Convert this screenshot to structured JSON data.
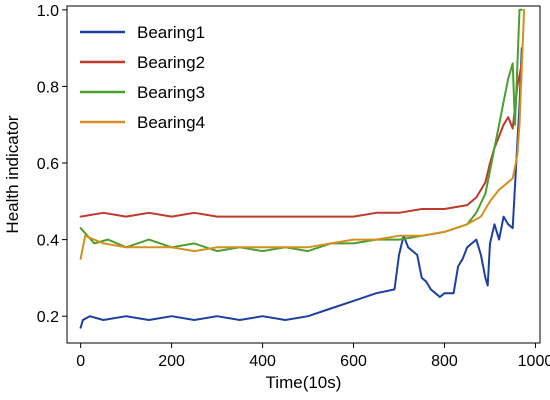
{
  "chart_data": {
    "type": "line",
    "title": "",
    "xlabel": "Time(10s)",
    "ylabel": "Health indicator",
    "xlim": [
      -30,
      1010
    ],
    "ylim": [
      0.13,
      1.01
    ],
    "xticks": [
      0,
      200,
      400,
      600,
      800,
      1000
    ],
    "xtick_labels": [
      "0",
      "200",
      "400",
      "600",
      "800",
      "1000"
    ],
    "yticks": [
      0.2,
      0.4,
      0.6,
      0.8,
      1.0
    ],
    "ytick_labels": [
      "0.2",
      "0.4",
      "0.6",
      "0.8",
      "1.0"
    ],
    "grid": false,
    "legend_position": "top-left",
    "series": [
      {
        "name": "Bearing1",
        "color": "#1f3fa0",
        "x": [
          0,
          5,
          20,
          50,
          100,
          150,
          200,
          250,
          300,
          350,
          400,
          450,
          500,
          550,
          600,
          650,
          690,
          700,
          710,
          720,
          730,
          740,
          750,
          760,
          770,
          780,
          790,
          800,
          810,
          820,
          830,
          840,
          850,
          860,
          870,
          880,
          890,
          895,
          900,
          910,
          920,
          930,
          940,
          950,
          960,
          965,
          970
        ],
        "y": [
          0.17,
          0.19,
          0.2,
          0.19,
          0.2,
          0.19,
          0.2,
          0.19,
          0.2,
          0.19,
          0.2,
          0.19,
          0.2,
          0.22,
          0.24,
          0.26,
          0.27,
          0.36,
          0.41,
          0.38,
          0.37,
          0.36,
          0.3,
          0.29,
          0.27,
          0.26,
          0.25,
          0.26,
          0.26,
          0.26,
          0.33,
          0.35,
          0.38,
          0.39,
          0.4,
          0.36,
          0.3,
          0.28,
          0.39,
          0.44,
          0.4,
          0.46,
          0.44,
          0.43,
          0.65,
          0.75,
          0.9
        ]
      },
      {
        "name": "Bearing2",
        "color": "#c0392b",
        "x": [
          0,
          50,
          100,
          150,
          200,
          250,
          300,
          350,
          400,
          450,
          500,
          550,
          600,
          650,
          700,
          750,
          800,
          850,
          870,
          890,
          900,
          910,
          920,
          930,
          940,
          950,
          960,
          970
        ],
        "y": [
          0.46,
          0.47,
          0.46,
          0.47,
          0.46,
          0.47,
          0.46,
          0.46,
          0.46,
          0.46,
          0.46,
          0.46,
          0.46,
          0.47,
          0.47,
          0.48,
          0.48,
          0.49,
          0.51,
          0.55,
          0.6,
          0.64,
          0.67,
          0.7,
          0.72,
          0.69,
          0.8,
          0.86
        ]
      },
      {
        "name": "Bearing3",
        "color": "#4aa02c",
        "x": [
          0,
          30,
          60,
          100,
          150,
          200,
          250,
          300,
          350,
          400,
          450,
          500,
          550,
          600,
          650,
          700,
          750,
          800,
          850,
          870,
          890,
          900,
          910,
          920,
          930,
          940,
          950,
          955,
          960,
          965,
          970
        ],
        "y": [
          0.43,
          0.39,
          0.4,
          0.38,
          0.4,
          0.38,
          0.39,
          0.37,
          0.38,
          0.37,
          0.38,
          0.37,
          0.39,
          0.39,
          0.4,
          0.4,
          0.41,
          0.42,
          0.44,
          0.47,
          0.52,
          0.58,
          0.64,
          0.7,
          0.76,
          0.82,
          0.86,
          0.7,
          0.85,
          1.0,
          1.0
        ]
      },
      {
        "name": "Bearing4",
        "color": "#d4901f",
        "x": [
          0,
          10,
          50,
          100,
          150,
          200,
          250,
          300,
          350,
          400,
          450,
          500,
          550,
          600,
          650,
          700,
          750,
          800,
          850,
          880,
          900,
          920,
          940,
          950,
          960,
          965,
          970,
          975
        ],
        "y": [
          0.35,
          0.41,
          0.39,
          0.38,
          0.38,
          0.38,
          0.37,
          0.38,
          0.38,
          0.38,
          0.38,
          0.38,
          0.39,
          0.4,
          0.4,
          0.41,
          0.41,
          0.42,
          0.44,
          0.46,
          0.5,
          0.53,
          0.55,
          0.56,
          0.62,
          0.7,
          0.85,
          1.0
        ]
      }
    ]
  }
}
